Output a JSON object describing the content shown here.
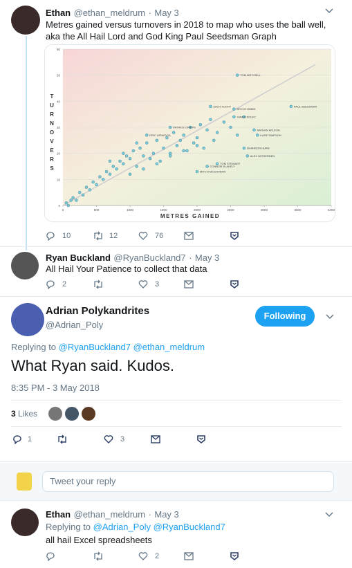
{
  "separator": "·",
  "tweets": [
    {
      "name": "Ethan",
      "handle": "@ethan_meldrum",
      "date": "May 3",
      "text": "Metres gained versus turnovers in 2018 to map who uses the ball well, aka the All Hail Lord and God King Paul Seedsman Graph",
      "replies": 10,
      "retweets": 12,
      "likes": 76
    },
    {
      "name": "Ryan Buckland",
      "handle": "@RyanBuckland7",
      "date": "May 3",
      "text": "All Hail Your Patience to collect that data",
      "replies": 2,
      "likes": 3
    }
  ],
  "main_tweet": {
    "name": "Adrian Polykandrites",
    "handle": "@Adrian_Poly",
    "follow_button": "Following",
    "replying_label": "Replying to",
    "replying_to": [
      "@RyanBuckland7",
      "@ethan_meldrum"
    ],
    "text": "What Ryan said. Kudos.",
    "timestamp": "8:35 PM - 3 May 2018",
    "likes_count": 3,
    "likes_label": "Likes",
    "replies": 1,
    "likes": 3
  },
  "reply_box": {
    "placeholder": "Tweet your reply"
  },
  "replies": [
    {
      "name": "Ethan",
      "handle": "@ethan_meldrum",
      "date": "May 3",
      "replying_label": "Replying to",
      "replying_to": [
        "@Adrian_Poly",
        "@RyanBuckland7"
      ],
      "text": "all hail Excel spreadsheets",
      "likes": 2
    }
  ],
  "chart_data": {
    "type": "scatter",
    "xlabel": "METRES GAINED",
    "ylabel": "TURNOVERS",
    "color": "#7ec8d8",
    "xlim": [
      0,
      4000
    ],
    "ylim": [
      0,
      60
    ],
    "xticks": [
      0,
      500,
      1000,
      1500,
      2000,
      2500,
      3000,
      3500,
      4000
    ],
    "yticks": [
      0,
      10,
      20,
      30,
      40,
      50,
      60
    ],
    "x": [
      50,
      80,
      120,
      150,
      200,
      250,
      300,
      350,
      400,
      450,
      500,
      550,
      600,
      650,
      700,
      750,
      800,
      850,
      900,
      950,
      1000,
      1050,
      1100,
      1150,
      1200,
      1250,
      1300,
      1350,
      1400,
      1450,
      1500,
      1550,
      1600,
      1650,
      1700,
      1750,
      1800,
      1850,
      1900,
      1950,
      2000,
      2050,
      2100,
      2150,
      2200,
      2250,
      2300,
      2400,
      2500,
      2600,
      2700,
      1000,
      1200,
      1400,
      1600,
      1800,
      2000,
      700,
      900,
      1100,
      2600,
      3400,
      2200,
      2550,
      2550,
      2850,
      2900,
      2700,
      2750,
      2300,
      2150,
      2000,
      1250,
      1600
    ],
    "y": [
      1,
      0,
      2,
      3,
      2,
      5,
      4,
      7,
      6,
      9,
      8,
      11,
      10,
      13,
      12,
      15,
      14,
      17,
      16,
      19,
      18,
      21,
      15,
      22,
      19,
      24,
      18,
      20,
      25,
      17,
      22,
      26,
      20,
      28,
      23,
      25,
      27,
      21,
      30,
      24,
      26,
      31,
      22,
      29,
      33,
      25,
      28,
      32,
      30,
      27,
      34,
      12,
      14,
      16,
      19,
      21,
      23,
      17,
      20,
      24,
      50,
      38,
      38,
      37,
      34,
      29,
      27,
      22,
      19,
      16,
      15,
      13,
      27,
      30
    ],
    "labels": [
      null,
      null,
      null,
      null,
      null,
      null,
      null,
      null,
      null,
      null,
      null,
      null,
      null,
      null,
      null,
      null,
      null,
      null,
      null,
      null,
      null,
      null,
      null,
      null,
      null,
      null,
      null,
      null,
      null,
      null,
      null,
      null,
      null,
      null,
      null,
      null,
      null,
      null,
      null,
      null,
      null,
      null,
      null,
      null,
      null,
      null,
      null,
      null,
      null,
      null,
      null,
      null,
      null,
      null,
      null,
      null,
      null,
      null,
      null,
      null,
      "TOM MITCHELL",
      "PAUL SEEDSMAN",
      "ZACH TUOHY",
      "BRYCE GIBBS",
      "JARED POLEC",
      "NATHAN WILSON",
      "KADE SIMPSON",
      "SHANNON HURN",
      "ALEX WITHERDEN",
      "TOM STEWART",
      "CONNOR BLAKELY",
      "MITCH MCGOVERN",
      "ERIC HIPWOOD",
      "PATRICK CRIPPS"
    ],
    "trendline": {
      "x": [
        0,
        3760
      ],
      "y": [
        0,
        54
      ]
    }
  }
}
